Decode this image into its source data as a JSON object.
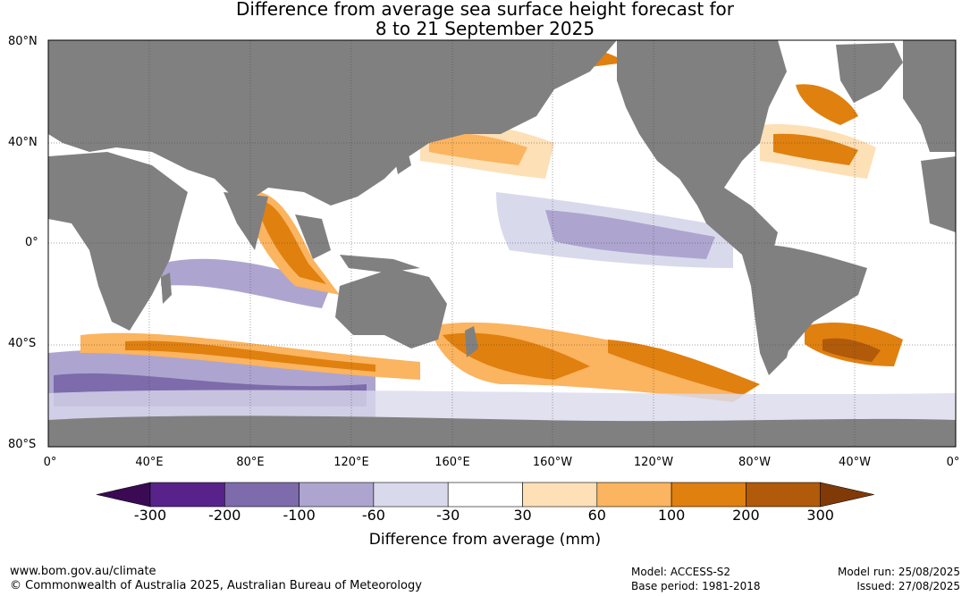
{
  "title": {
    "line1": "Difference from average sea surface height forecast for",
    "line2": "8 to 21 September 2025"
  },
  "map": {
    "lat_labels": [
      "80°N",
      "40°N",
      "0°",
      "40°S",
      "80°S"
    ],
    "lon_labels": [
      "0°",
      "40°E",
      "80°E",
      "120°E",
      "160°E",
      "160°W",
      "120°W",
      "80°W",
      "40°W",
      "0°"
    ],
    "land_color": "#808080",
    "ocean_color": "#ffffff"
  },
  "colorbar": {
    "title": "Difference from average (mm)",
    "ticks": [
      "-300",
      "-200",
      "-100",
      "-60",
      "-30",
      "30",
      "60",
      "100",
      "200",
      "300"
    ],
    "colors": [
      "#3b0a54",
      "#57238a",
      "#7d6bab",
      "#ada5cf",
      "#d9d9ec",
      "#ffffff",
      "#fde0b6",
      "#fbb45f",
      "#e0800f",
      "#b05a0a",
      "#7f3a08"
    ]
  },
  "footer": {
    "url": "www.bom.gov.au/climate",
    "copyright": "© Commonwealth of Australia 2025, Australian Bureau of Meteorology",
    "model": "Model: ACCESS-S2",
    "base_period": "Base period: 1981-2018",
    "model_run": "Model run: 25/08/2025",
    "issued": "Issued: 27/08/2025"
  }
}
